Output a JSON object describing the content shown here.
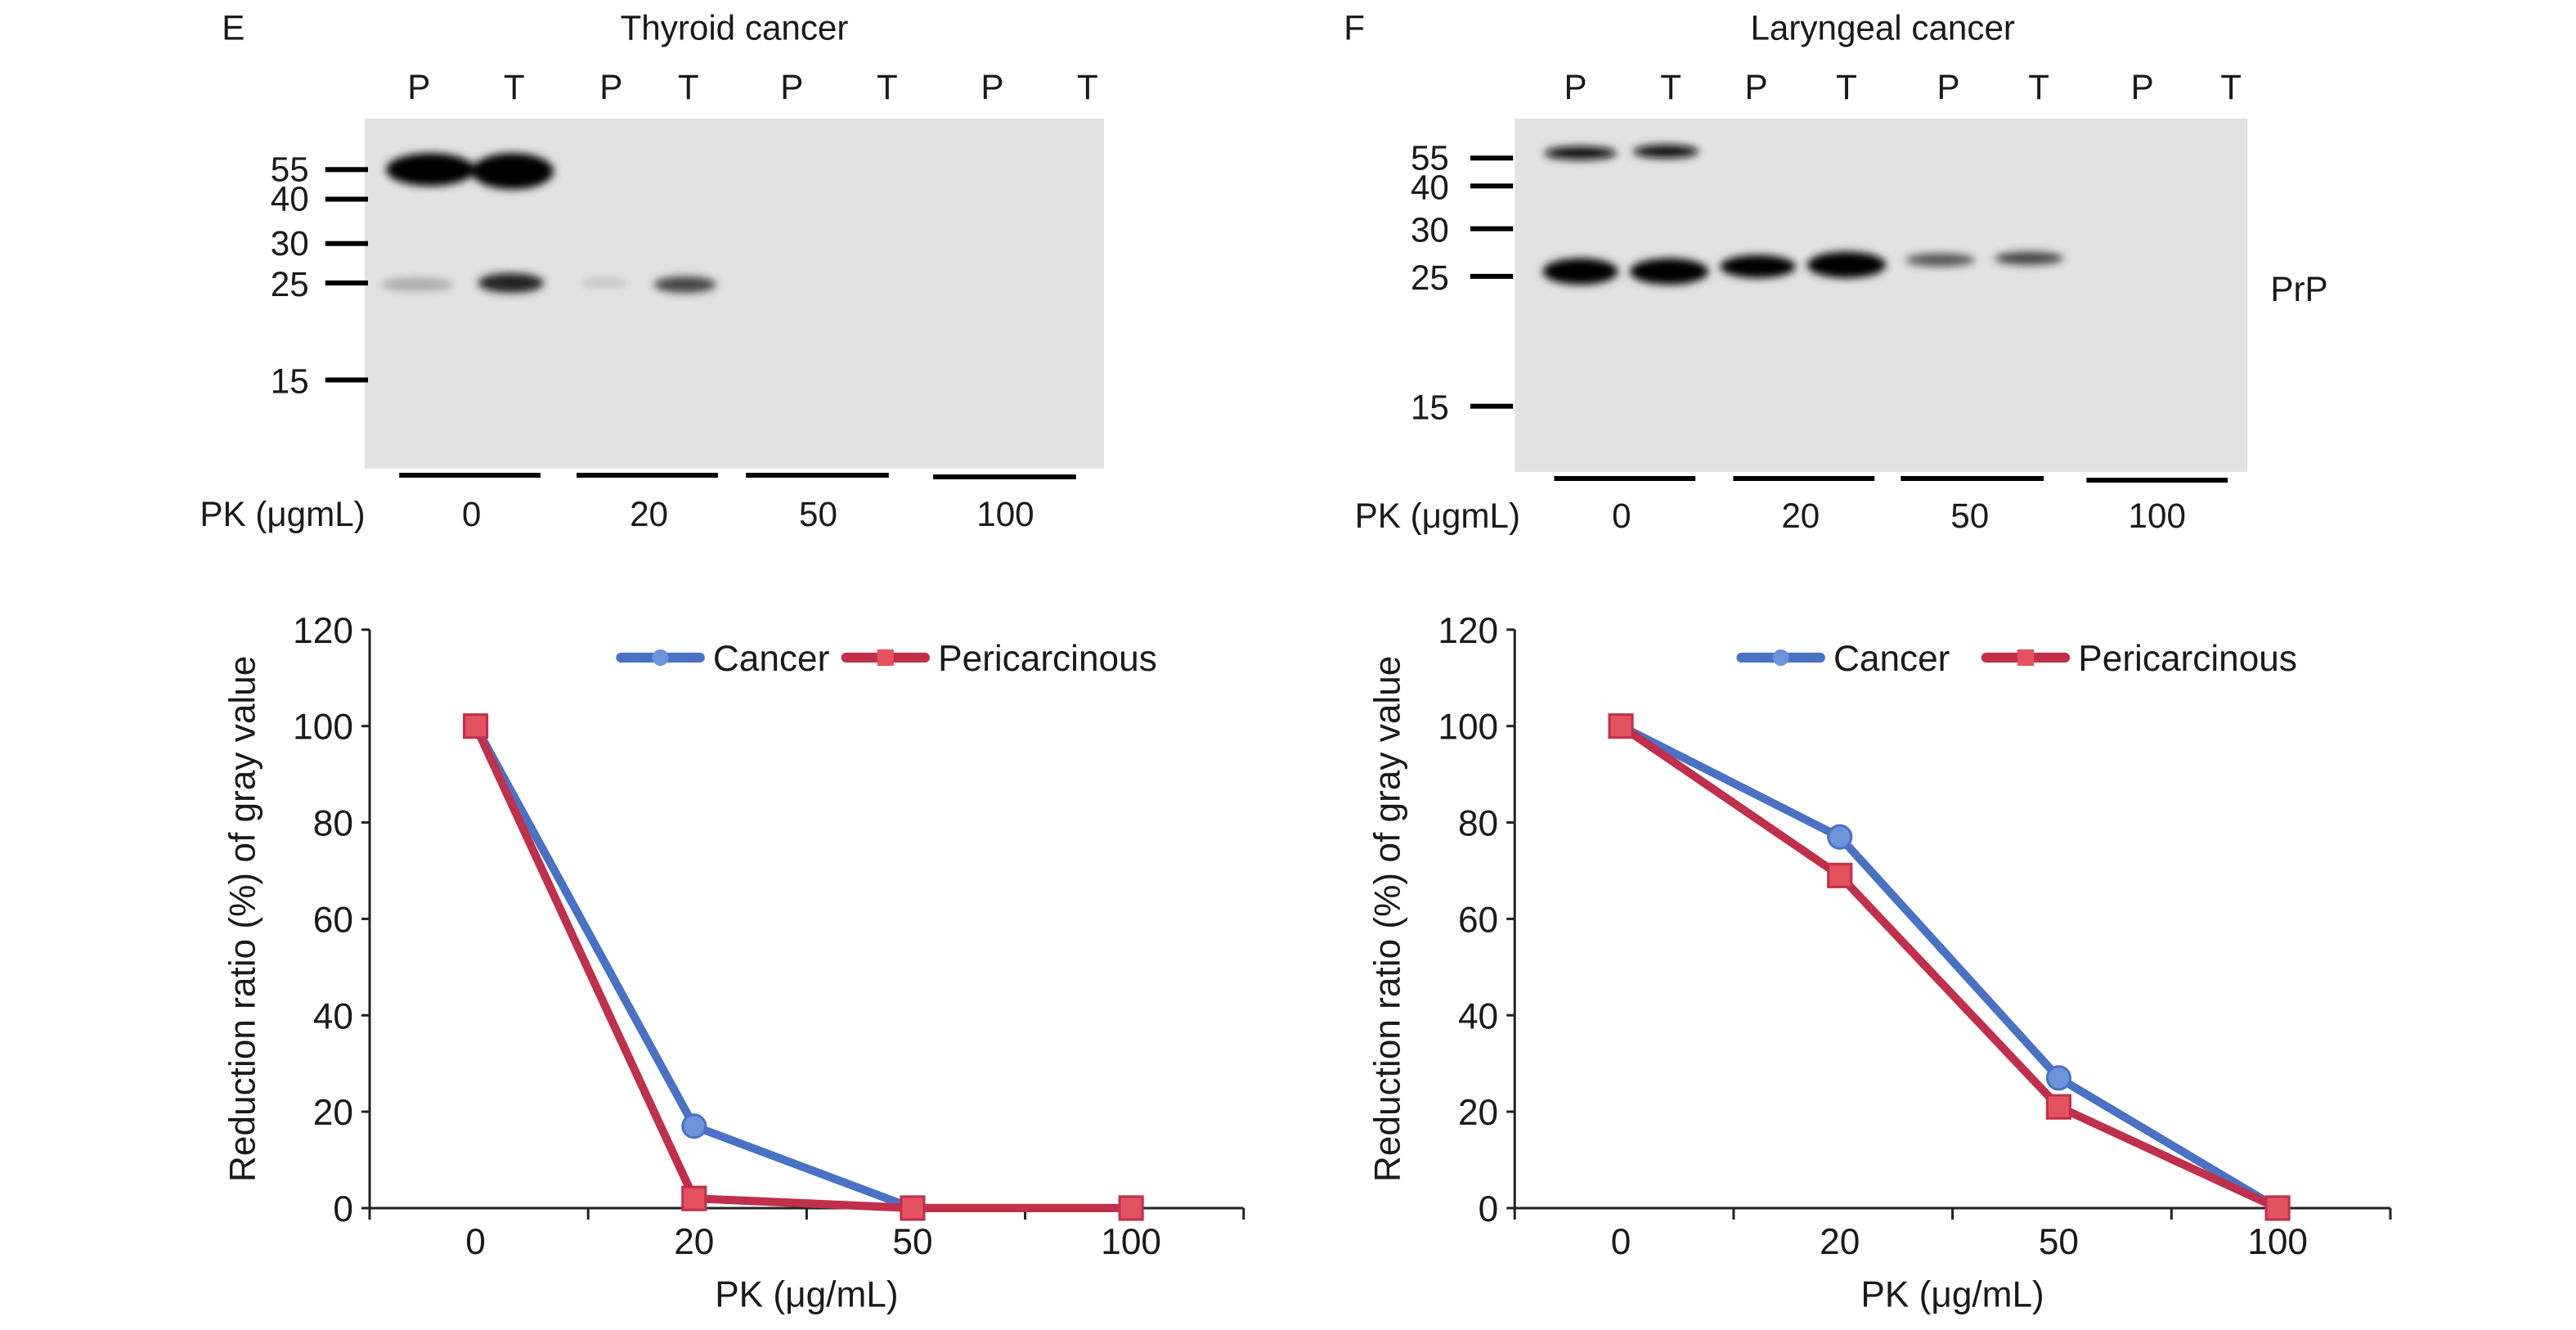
{
  "panels": [
    {
      "letter": "E",
      "title": "Thyroid cancer",
      "lanes": [
        "P",
        "T",
        "P",
        "T",
        "P",
        "T",
        "P",
        "T"
      ],
      "markers": [
        "55",
        "40",
        "30",
        "25",
        "15"
      ],
      "pk_label": "PK (μgmL)",
      "pk_values": [
        "0",
        "20",
        "50",
        "100"
      ]
    },
    {
      "letter": "F",
      "title": "Laryngeal cancer",
      "lanes": [
        "P",
        "T",
        "P",
        "T",
        "P",
        "T",
        "P",
        "T"
      ],
      "markers": [
        "55",
        "40",
        "30",
        "25",
        "15"
      ],
      "pk_label": "PK (μgmL)",
      "pk_values": [
        "0",
        "20",
        "50",
        "100"
      ],
      "band_label": "PrP"
    }
  ],
  "colors": {
    "cancer": "#4a72c4",
    "pericarcinous": "#c0304a"
  },
  "chart_data": [
    {
      "type": "line",
      "categories": [
        "0",
        "20",
        "50",
        "100"
      ],
      "xlabel": "PK (μg/mL)",
      "ylabel": "Reduction ratio (%) of gray value",
      "ylim": [
        0,
        120
      ],
      "yticks": [
        "0",
        "20",
        "40",
        "60",
        "80",
        "100",
        "120"
      ],
      "grid": false,
      "legend": "top-right",
      "series": [
        {
          "name": "Cancer",
          "values": [
            100,
            17,
            0,
            0
          ]
        },
        {
          "name": "Pericarcinous",
          "values": [
            100,
            2,
            0,
            0
          ]
        }
      ]
    },
    {
      "type": "line",
      "categories": [
        "0",
        "20",
        "50",
        "100"
      ],
      "xlabel": "PK (μg/mL)",
      "ylabel": "Reduction ratio (%) of gray value",
      "ylim": [
        0,
        120
      ],
      "yticks": [
        "0",
        "20",
        "40",
        "60",
        "80",
        "100",
        "120"
      ],
      "grid": false,
      "legend": "top-right",
      "series": [
        {
          "name": "Cancer",
          "values": [
            100,
            77,
            27,
            0
          ]
        },
        {
          "name": "Pericarcinous",
          "values": [
            100,
            69,
            21,
            0
          ]
        }
      ]
    }
  ]
}
